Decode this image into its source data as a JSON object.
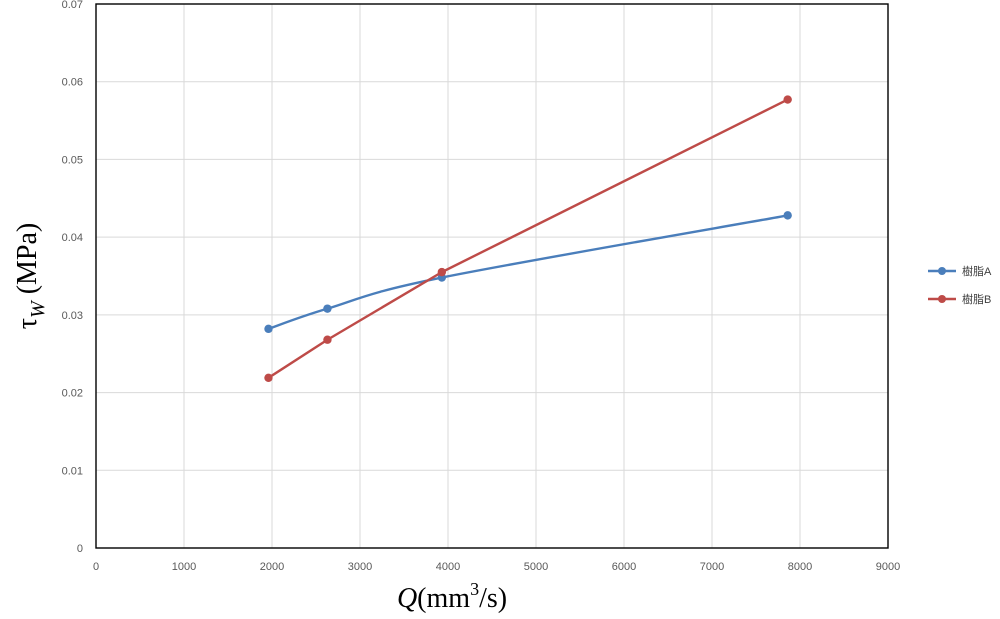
{
  "chart_data": {
    "type": "line",
    "title": "",
    "xlabel": {
      "symbol": "Q",
      "unit_prefix": "(mm",
      "unit_sup": "3",
      "unit_suffix": "/s)"
    },
    "ylabel": {
      "symbol": "τ",
      "subscript": "W",
      "unit": " (MPa)"
    },
    "xlim": [
      0,
      9000
    ],
    "ylim": [
      0,
      0.07
    ],
    "xticks": [
      "0",
      "1000",
      "2000",
      "3000",
      "4000",
      "5000",
      "6000",
      "7000",
      "8000",
      "9000"
    ],
    "xtick_values": [
      0,
      1000,
      2000,
      3000,
      4000,
      5000,
      6000,
      7000,
      8000,
      9000
    ],
    "yticks": [
      "0",
      "0.01",
      "0.02",
      "0.03",
      "0.04",
      "0.05",
      "0.06",
      "0.07"
    ],
    "ytick_values": [
      0,
      0.01,
      0.02,
      0.03,
      0.04,
      0.05,
      0.06,
      0.07
    ],
    "grid": true,
    "legend_position": "right",
    "series": [
      {
        "name": "樹脂A",
        "color": "#4a7ebb",
        "smooth": true,
        "points": [
          {
            "x": 1960,
            "y": 0.0282
          },
          {
            "x": 2630,
            "y": 0.0308
          },
          {
            "x": 3930,
            "y": 0.0348
          },
          {
            "x": 7860,
            "y": 0.0428
          }
        ]
      },
      {
        "name": "樹脂B",
        "color": "#be4b48",
        "smooth": false,
        "points": [
          {
            "x": 1960,
            "y": 0.0219
          },
          {
            "x": 2630,
            "y": 0.0268
          },
          {
            "x": 3930,
            "y": 0.0355
          },
          {
            "x": 7860,
            "y": 0.0577
          }
        ]
      }
    ]
  }
}
